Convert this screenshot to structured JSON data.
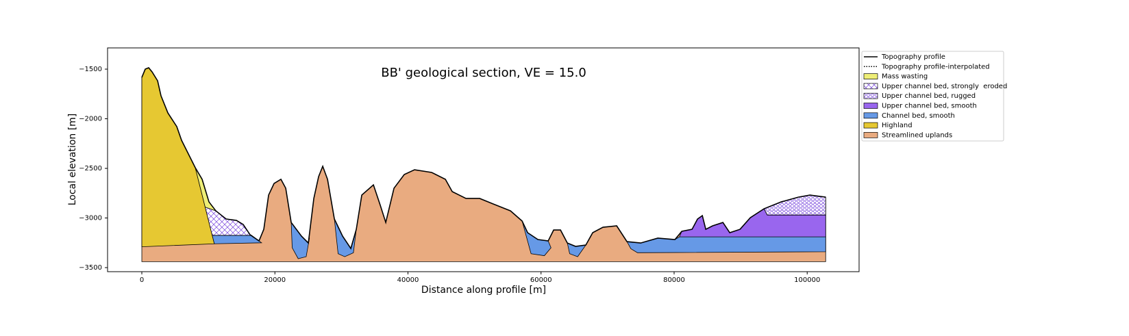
{
  "chart_data": {
    "type": "geological-section",
    "title": "BB' geological section, VE = 15.0",
    "xlabel": "Distance along profile [m]",
    "ylabel": "Local elevation [m]",
    "xlim": [
      -5150,
      107800
    ],
    "ylim": [
      -3541,
      -1286
    ],
    "xticks": [
      0,
      20000,
      40000,
      60000,
      80000,
      100000
    ],
    "yticks": [
      {
        "value": -3500,
        "label": "−3500"
      },
      {
        "value": -3000,
        "label": "−3000"
      },
      {
        "value": -2500,
        "label": "−2500"
      },
      {
        "value": -2000,
        "label": "−2000"
      },
      {
        "value": -1500,
        "label": "−1500"
      }
    ],
    "series": [
      {
        "name": "Topography profile",
        "color": "#000000",
        "style": "solid",
        "x": [
          0,
          515,
          1030,
          1545,
          2369,
          2884,
          3914,
          5252,
          5973,
          7003,
          8033,
          9063,
          10093,
          11123,
          12667,
          14212,
          15242,
          16272,
          17611,
          18332,
          19053,
          19877,
          20907,
          21628,
          22451,
          23996,
          25026,
          25850,
          26571,
          27189,
          27909,
          28939,
          30175,
          31411,
          32235,
          33059,
          34809,
          35839,
          36663,
          37899,
          39444,
          40989,
          43563,
          45623,
          46653,
          48713,
          50772,
          52832,
          55407,
          57158,
          57981,
          59526,
          61071,
          61895,
          62925,
          63955,
          65190,
          66735,
          67765,
          69310,
          71370,
          72914,
          74974,
          77549,
          80124,
          81154,
          82698,
          83522,
          84243,
          84758,
          85788,
          87333,
          88363,
          89907,
          91452,
          93512,
          96087,
          98661,
          100412,
          102780
        ],
        "y": [
          -1583,
          -1500,
          -1486,
          -1528,
          -1617,
          -1769,
          -1941,
          -2079,
          -2217,
          -2355,
          -2493,
          -2610,
          -2838,
          -2928,
          -3010,
          -3024,
          -3066,
          -3169,
          -3231,
          -3114,
          -2769,
          -2652,
          -2610,
          -2700,
          -3045,
          -3183,
          -3252,
          -2803,
          -2583,
          -2479,
          -2610,
          -3010,
          -3183,
          -3307,
          -3114,
          -2769,
          -2666,
          -2872,
          -3045,
          -2700,
          -2562,
          -2514,
          -2541,
          -2610,
          -2734,
          -2803,
          -2803,
          -2859,
          -2928,
          -3031,
          -3148,
          -3217,
          -3231,
          -3121,
          -3121,
          -3252,
          -3286,
          -3272,
          -3148,
          -3093,
          -3079,
          -3238,
          -3252,
          -3203,
          -3217,
          -3134,
          -3114,
          -3010,
          -2976,
          -3114,
          -3079,
          -3045,
          -3148,
          -3114,
          -2997,
          -2907,
          -2838,
          -2790,
          -2769,
          -2790
        ]
      },
      {
        "name": "Topography profile-interpolated",
        "color": "#000000",
        "style": "dotted",
        "x": [],
        "y": []
      }
    ],
    "units": [
      {
        "name": "Mass wasting",
        "color": "#eeee77",
        "pattern": "none",
        "polygons": [
          {
            "x": [
              8033,
              9063,
              10093,
              11123,
              9518
            ],
            "y": [
              -2493,
              -2610,
              -2838,
              -2928,
              -2890
            ]
          }
        ]
      },
      {
        "name": "Upper channel bed, strongly  eroded",
        "color": "#7744dd",
        "pattern": "cross",
        "polygons": [
          {
            "x": [
              9518,
              11123,
              12667,
              14212,
              15242,
              16272,
              16500,
              10582
            ],
            "y": [
              -2890,
              -2928,
              -3010,
              -3024,
              -3066,
              -3169,
              -3175,
              -3175
            ]
          }
        ]
      },
      {
        "name": "Upper channel bed, rugged",
        "color": "#7744dd",
        "pattern": "dots",
        "polygons": [
          {
            "x": [
              93512,
              96087,
              98661,
              100412,
              102780,
              102780,
              94000
            ],
            "y": [
              -2907,
              -2838,
              -2790,
              -2769,
              -2790,
              -2970,
              -2970
            ]
          }
        ]
      },
      {
        "name": "Upper channel bed, smooth",
        "color": "#9966ee",
        "pattern": "none",
        "polygons": [
          {
            "x": [
              80800,
              81154,
              82698,
              83522,
              84243,
              84758,
              85788,
              87333,
              88363,
              89907,
              91452,
              93512,
              94000,
              102780,
              102780
            ],
            "y": [
              -3190,
              -3134,
              -3114,
              -3010,
              -2976,
              -3114,
              -3079,
              -3045,
              -3148,
              -3114,
              -2997,
              -2907,
              -2970,
              -2970,
              -3190
            ]
          }
        ]
      },
      {
        "name": "Channel bed, smooth",
        "color": "#6699e6",
        "pattern": "none",
        "polygons": [
          {
            "x": [
              10582,
              16500,
              17611,
              18000,
              10900
            ],
            "y": [
              -3175,
              -3175,
              -3231,
              -3250,
              -3260
            ]
          },
          {
            "x": [
              22451,
              23996,
              25026,
              25200,
              24700,
              23500,
              22600
            ],
            "y": [
              -3045,
              -3183,
              -3252,
              -3200,
              -3390,
              -3410,
              -3300
            ]
          },
          {
            "x": [
              28939,
              30175,
              31411,
              32235,
              31800,
              30500,
              29500
            ],
            "y": [
              -3010,
              -3183,
              -3307,
              -3114,
              -3350,
              -3390,
              -3360
            ]
          },
          {
            "x": [
              57158,
              57981,
              59526,
              61071,
              61500,
              60500,
              58500
            ],
            "y": [
              -3031,
              -3148,
              -3217,
              -3231,
              -3300,
              -3380,
              -3360
            ]
          },
          {
            "x": [
              63955,
              65190,
              66735,
              65500,
              64300
            ],
            "y": [
              -3252,
              -3286,
              -3272,
              -3390,
              -3360
            ]
          },
          {
            "x": [
              72914,
              74974,
              77549,
              80124,
              80800,
              102780,
              102780,
              74500,
              73500
            ],
            "y": [
              -3238,
              -3252,
              -3203,
              -3217,
              -3190,
              -3190,
              -3340,
              -3350,
              -3310
            ]
          }
        ]
      },
      {
        "name": "Highland",
        "color": "#e6c832",
        "pattern": "none",
        "polygons": [
          {
            "x": [
              0,
              0,
              515,
              1030,
              1545,
              2369,
              2884,
              3914,
              5252,
              5973,
              7003,
              8033,
              10900
            ],
            "y": [
              -3290,
              -1583,
              -1500,
              -1486,
              -1528,
              -1617,
              -1769,
              -1941,
              -2079,
              -2217,
              -2355,
              -2493,
              -3260
            ]
          }
        ]
      },
      {
        "name": "Streamlined uplands",
        "color": "#e9ab80",
        "pattern": "none",
        "bottom": -3440
      }
    ]
  }
}
